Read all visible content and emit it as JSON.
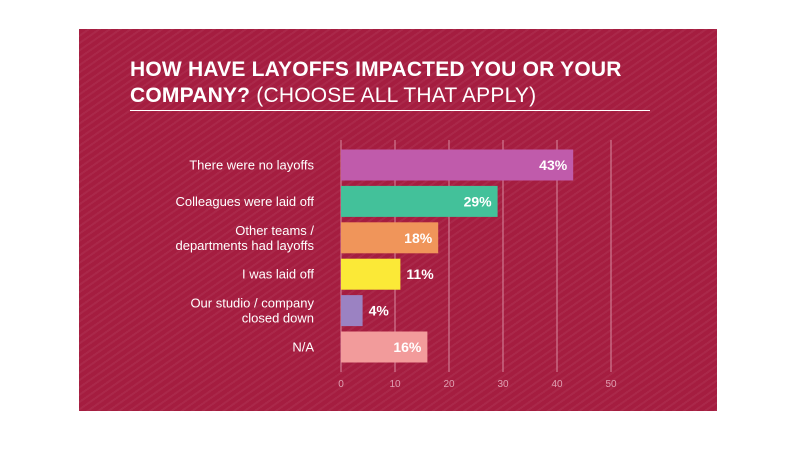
{
  "chart_data": {
    "type": "bar",
    "orientation": "horizontal",
    "title_bold": "HOW HAVE LAYOFFS IMPACTED YOU OR YOUR COMPANY?",
    "title_light": "(CHOOSE ALL THAT APPLY)",
    "categories": [
      [
        "There were no layoffs"
      ],
      [
        "Colleagues were laid off"
      ],
      [
        "Other teams /",
        "departments had layoffs"
      ],
      [
        "I was laid off"
      ],
      [
        "Our studio / company",
        "closed down"
      ],
      [
        "N/A"
      ]
    ],
    "values": [
      43,
      29,
      18,
      11,
      4,
      16
    ],
    "value_labels": [
      "43%",
      "29%",
      "18%",
      "11%",
      "4%",
      "16%"
    ],
    "colors": [
      "#c05bab",
      "#43c19a",
      "#f0955a",
      "#fbe937",
      "#9b82c2",
      "#f29b9b"
    ],
    "xlim": [
      0,
      50
    ],
    "ticks": [
      0,
      10,
      20,
      30,
      40,
      50
    ],
    "tick_labels": [
      "0",
      "10",
      "20",
      "30",
      "40",
      "50"
    ],
    "grid": true
  }
}
